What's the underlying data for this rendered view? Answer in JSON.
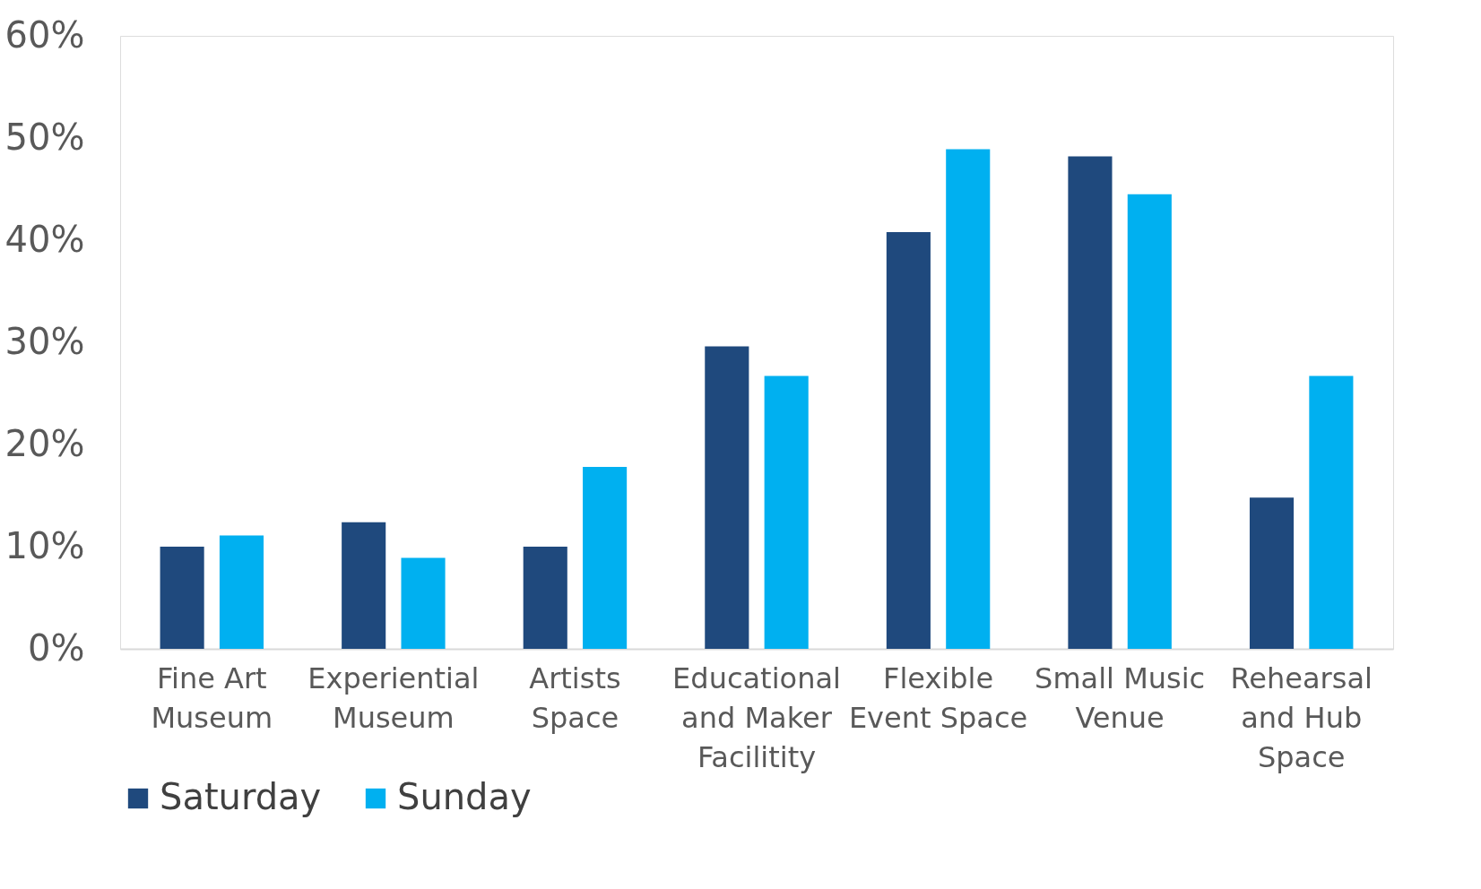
{
  "chart_data": {
    "type": "bar",
    "categories": [
      "Fine Art\nMuseum",
      "Experiential\nMuseum",
      "Artists\nSpace",
      "Educational\nand Maker\nFacilitity",
      "Flexible\nEvent Space",
      "Small Music\nVenue",
      "Rehearsal\nand Hub\nSpace"
    ],
    "series": [
      {
        "name": "Saturday",
        "color": "#1f497d",
        "values": [
          10,
          12.4,
          10,
          29.6,
          40.8,
          48.2,
          14.8
        ]
      },
      {
        "name": "Sunday",
        "color": "#00b0f0",
        "values": [
          11.1,
          8.9,
          17.8,
          26.7,
          48.9,
          44.5,
          26.7
        ]
      }
    ],
    "ylim": [
      0,
      60
    ],
    "yticks": [
      {
        "value": 0,
        "label": "0%"
      },
      {
        "value": 10,
        "label": "10%"
      },
      {
        "value": 20,
        "label": "20%"
      },
      {
        "value": 30,
        "label": "30%"
      },
      {
        "value": 40,
        "label": "40%"
      },
      {
        "value": 50,
        "label": "50%"
      },
      {
        "value": 60,
        "label": "60%"
      }
    ],
    "grid": false,
    "legend": "bottom"
  }
}
